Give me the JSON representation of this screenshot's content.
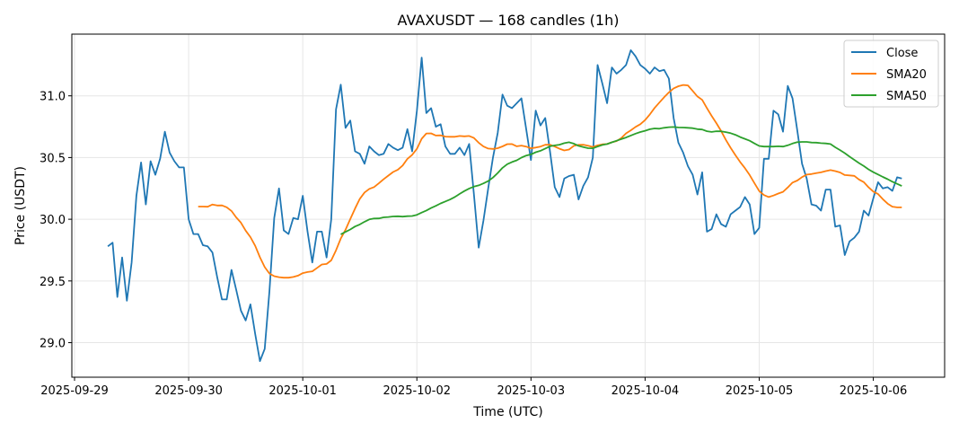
{
  "chart_data": {
    "type": "line",
    "title": "AVAXUSDT — 168 candles (1h)",
    "xlabel": "Time (UTC)",
    "ylabel": "Price (USDT)",
    "start": "2025-09-29T07:00:00Z",
    "interval_hours": 1,
    "xlim_hours_from_2025_09_29": [
      -0.57,
      183
    ],
    "ylim": [
      28.72,
      31.5
    ],
    "grid": true,
    "legend_position": "top-right",
    "x_ticks": [
      "2025-09-29",
      "2025-09-30",
      "2025-10-01",
      "2025-10-02",
      "2025-10-03",
      "2025-10-04",
      "2025-10-05",
      "2025-10-06"
    ],
    "y_ticks": [
      "29.0",
      "29.5",
      "30.0",
      "30.5",
      "31.0"
    ],
    "series": [
      {
        "name": "Close",
        "color": "#1f77b4",
        "values": [
          29.78,
          29.81,
          29.37,
          29.69,
          29.34,
          29.65,
          30.19,
          30.46,
          30.12,
          30.47,
          30.36,
          30.49,
          30.71,
          30.54,
          30.47,
          30.42,
          30.42,
          30.0,
          29.88,
          29.88,
          29.79,
          29.78,
          29.73,
          29.53,
          29.35,
          29.35,
          29.59,
          29.43,
          29.26,
          29.18,
          29.31,
          29.07,
          28.85,
          28.95,
          29.42,
          30.01,
          30.25,
          29.91,
          29.88,
          30.01,
          30.0,
          30.19,
          29.9,
          29.65,
          29.9,
          29.9,
          29.69,
          30.0,
          30.89,
          31.09,
          30.74,
          30.8,
          30.55,
          30.53,
          30.45,
          30.59,
          30.55,
          30.52,
          30.53,
          30.61,
          30.58,
          30.56,
          30.58,
          30.73,
          30.55,
          30.88,
          31.31,
          30.86,
          30.9,
          30.75,
          30.77,
          30.59,
          30.53,
          30.53,
          30.58,
          30.52,
          30.61,
          30.2,
          29.77,
          29.99,
          30.25,
          30.5,
          30.7,
          31.01,
          30.92,
          30.9,
          30.94,
          30.98,
          30.73,
          30.48,
          30.88,
          30.76,
          30.82,
          30.55,
          30.26,
          30.18,
          30.33,
          30.35,
          30.36,
          30.16,
          30.27,
          30.34,
          30.5,
          31.25,
          31.1,
          30.94,
          31.23,
          31.18,
          31.21,
          31.25,
          31.37,
          31.32,
          31.25,
          31.22,
          31.18,
          31.23,
          31.2,
          31.21,
          31.14,
          30.82,
          30.62,
          30.54,
          30.43,
          30.36,
          30.2,
          30.38,
          29.9,
          29.92,
          30.04,
          29.96,
          29.94,
          30.04,
          30.07,
          30.1,
          30.18,
          30.12,
          29.88,
          29.93,
          30.49,
          30.49,
          30.88,
          30.85,
          30.71,
          31.08,
          30.98,
          30.72,
          30.45,
          30.33,
          30.12,
          30.11,
          30.07,
          30.24,
          30.24,
          29.94,
          29.95,
          29.71,
          29.82,
          29.85,
          29.9,
          30.07,
          30.03,
          30.17,
          30.3,
          30.25,
          30.26,
          30.23,
          30.34,
          30.33
        ]
      },
      {
        "name": "SMA20",
        "color": "#ff7f0e",
        "window": 20
      },
      {
        "name": "SMA50",
        "color": "#2ca02c",
        "window": 50
      }
    ]
  }
}
